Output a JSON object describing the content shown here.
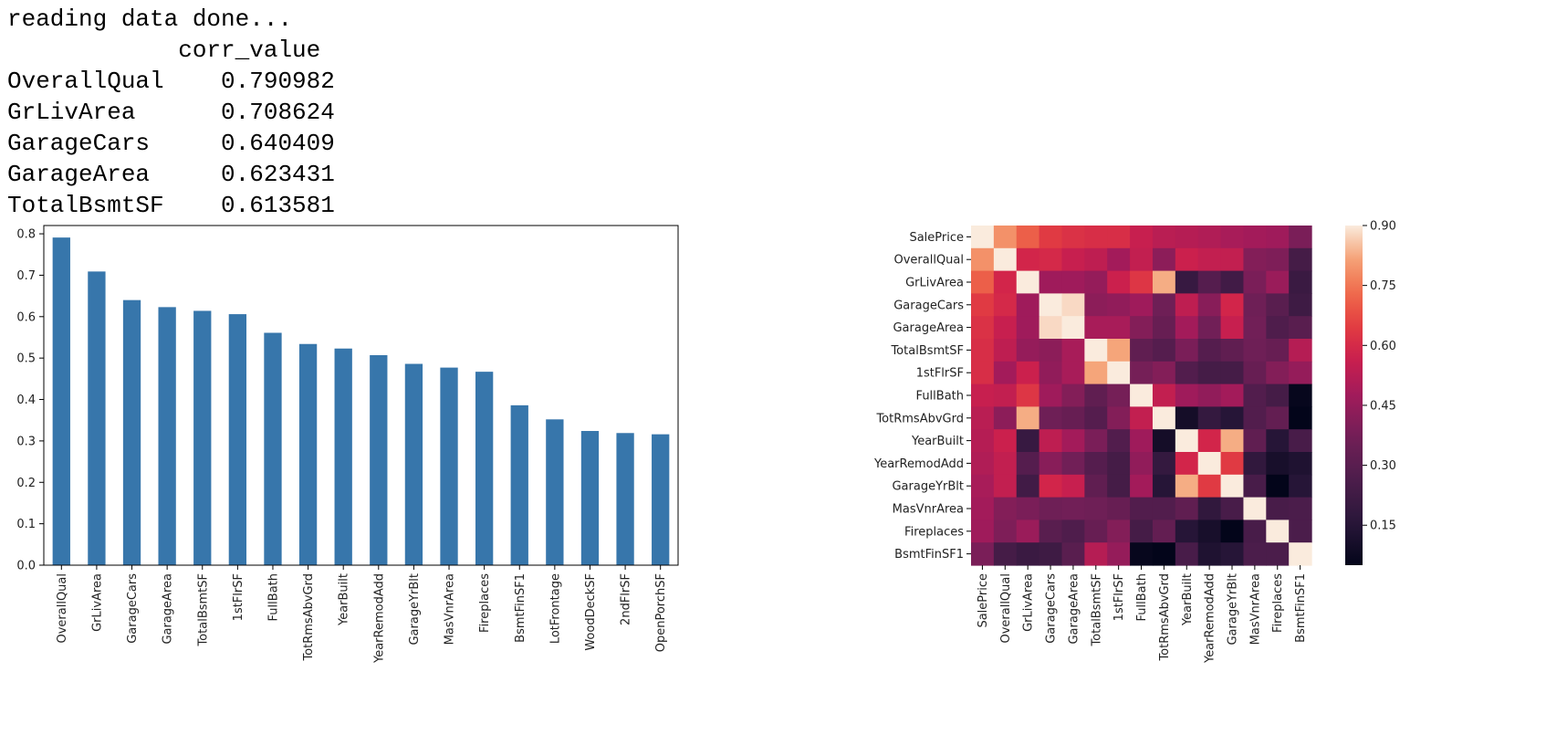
{
  "console": {
    "status_line": "reading data done...",
    "column_header": "corr_value",
    "rows": [
      {
        "feature": "OverallQual",
        "value": "0.790982"
      },
      {
        "feature": "GrLivArea",
        "value": "0.708624"
      },
      {
        "feature": "GarageCars",
        "value": "0.640409"
      },
      {
        "feature": "GarageArea",
        "value": "0.623431"
      },
      {
        "feature": "TotalBsmtSF",
        "value": "0.613581"
      }
    ]
  },
  "chart_data": [
    {
      "type": "bar",
      "categories": [
        "OverallQual",
        "GrLivArea",
        "GarageCars",
        "GarageArea",
        "TotalBsmtSF",
        "1stFlrSF",
        "FullBath",
        "TotRmsAbvGrd",
        "YearBuilt",
        "YearRemodAdd",
        "GarageYrBlt",
        "MasVnrArea",
        "Fireplaces",
        "BsmtFinSF1",
        "LotFrontage",
        "WoodDeckSF",
        "2ndFlrSF",
        "OpenPorchSF"
      ],
      "values": [
        0.791,
        0.709,
        0.64,
        0.623,
        0.614,
        0.606,
        0.561,
        0.534,
        0.523,
        0.507,
        0.486,
        0.477,
        0.467,
        0.386,
        0.352,
        0.324,
        0.319,
        0.316
      ],
      "ylim": [
        0,
        0.82
      ],
      "yticks": [
        "0.0",
        "0.1",
        "0.2",
        "0.3",
        "0.4",
        "0.5",
        "0.6",
        "0.7",
        "0.8"
      ],
      "color": "#3776ab",
      "grid": false
    },
    {
      "type": "heatmap",
      "labels": [
        "SalePrice",
        "OverallQual",
        "GrLivArea",
        "GarageCars",
        "GarageArea",
        "TotalBsmtSF",
        "1stFlrSF",
        "FullBath",
        "TotRmsAbvGrd",
        "YearBuilt",
        "YearRemodAdd",
        "GarageYrBlt",
        "MasVnrArea",
        "Fireplaces",
        "BsmtFinSF1"
      ],
      "matrix": [
        [
          1.0,
          0.79,
          0.71,
          0.64,
          0.62,
          0.61,
          0.61,
          0.56,
          0.53,
          0.52,
          0.51,
          0.49,
          0.48,
          0.47,
          0.39
        ],
        [
          0.79,
          1.0,
          0.59,
          0.6,
          0.56,
          0.54,
          0.48,
          0.55,
          0.43,
          0.57,
          0.55,
          0.55,
          0.41,
          0.4,
          0.24
        ],
        [
          0.71,
          0.59,
          1.0,
          0.47,
          0.47,
          0.45,
          0.57,
          0.63,
          0.83,
          0.2,
          0.29,
          0.23,
          0.39,
          0.46,
          0.21
        ],
        [
          0.64,
          0.6,
          0.47,
          1.0,
          0.88,
          0.43,
          0.44,
          0.47,
          0.36,
          0.54,
          0.42,
          0.59,
          0.36,
          0.3,
          0.22
        ],
        [
          0.62,
          0.56,
          0.47,
          0.88,
          1.0,
          0.49,
          0.49,
          0.41,
          0.34,
          0.48,
          0.37,
          0.56,
          0.37,
          0.27,
          0.3
        ],
        [
          0.61,
          0.54,
          0.45,
          0.43,
          0.49,
          1.0,
          0.82,
          0.32,
          0.29,
          0.39,
          0.29,
          0.32,
          0.36,
          0.34,
          0.52
        ],
        [
          0.61,
          0.48,
          0.57,
          0.44,
          0.49,
          0.82,
          1.0,
          0.38,
          0.41,
          0.28,
          0.24,
          0.24,
          0.34,
          0.41,
          0.45
        ],
        [
          0.56,
          0.55,
          0.63,
          0.47,
          0.41,
          0.32,
          0.38,
          1.0,
          0.55,
          0.47,
          0.44,
          0.48,
          0.28,
          0.24,
          0.06
        ],
        [
          0.53,
          0.43,
          0.83,
          0.36,
          0.34,
          0.29,
          0.41,
          0.55,
          1.0,
          0.1,
          0.19,
          0.15,
          0.28,
          0.33,
          0.04
        ],
        [
          0.52,
          0.57,
          0.2,
          0.54,
          0.48,
          0.39,
          0.28,
          0.47,
          0.1,
          1.0,
          0.59,
          0.83,
          0.32,
          0.15,
          0.25
        ],
        [
          0.51,
          0.55,
          0.29,
          0.42,
          0.37,
          0.29,
          0.24,
          0.44,
          0.19,
          0.59,
          1.0,
          0.64,
          0.18,
          0.11,
          0.13
        ],
        [
          0.49,
          0.55,
          0.23,
          0.59,
          0.56,
          0.32,
          0.24,
          0.48,
          0.15,
          0.83,
          0.64,
          1.0,
          0.25,
          0.05,
          0.15
        ],
        [
          0.48,
          0.41,
          0.39,
          0.36,
          0.37,
          0.36,
          0.34,
          0.28,
          0.28,
          0.32,
          0.18,
          0.25,
          1.0,
          0.25,
          0.26
        ],
        [
          0.47,
          0.4,
          0.46,
          0.3,
          0.27,
          0.34,
          0.41,
          0.24,
          0.33,
          0.15,
          0.11,
          0.05,
          0.25,
          1.0,
          0.26
        ],
        [
          0.39,
          0.24,
          0.21,
          0.22,
          0.3,
          0.52,
          0.45,
          0.06,
          0.04,
          0.25,
          0.13,
          0.15,
          0.26,
          0.26,
          1.0
        ]
      ],
      "colorbar_range": [
        0.05,
        0.9
      ],
      "colorbar_ticks": [
        "0.15",
        "0.30",
        "0.45",
        "0.60",
        "0.75",
        "0.90"
      ],
      "colormap": "rocket"
    }
  ]
}
